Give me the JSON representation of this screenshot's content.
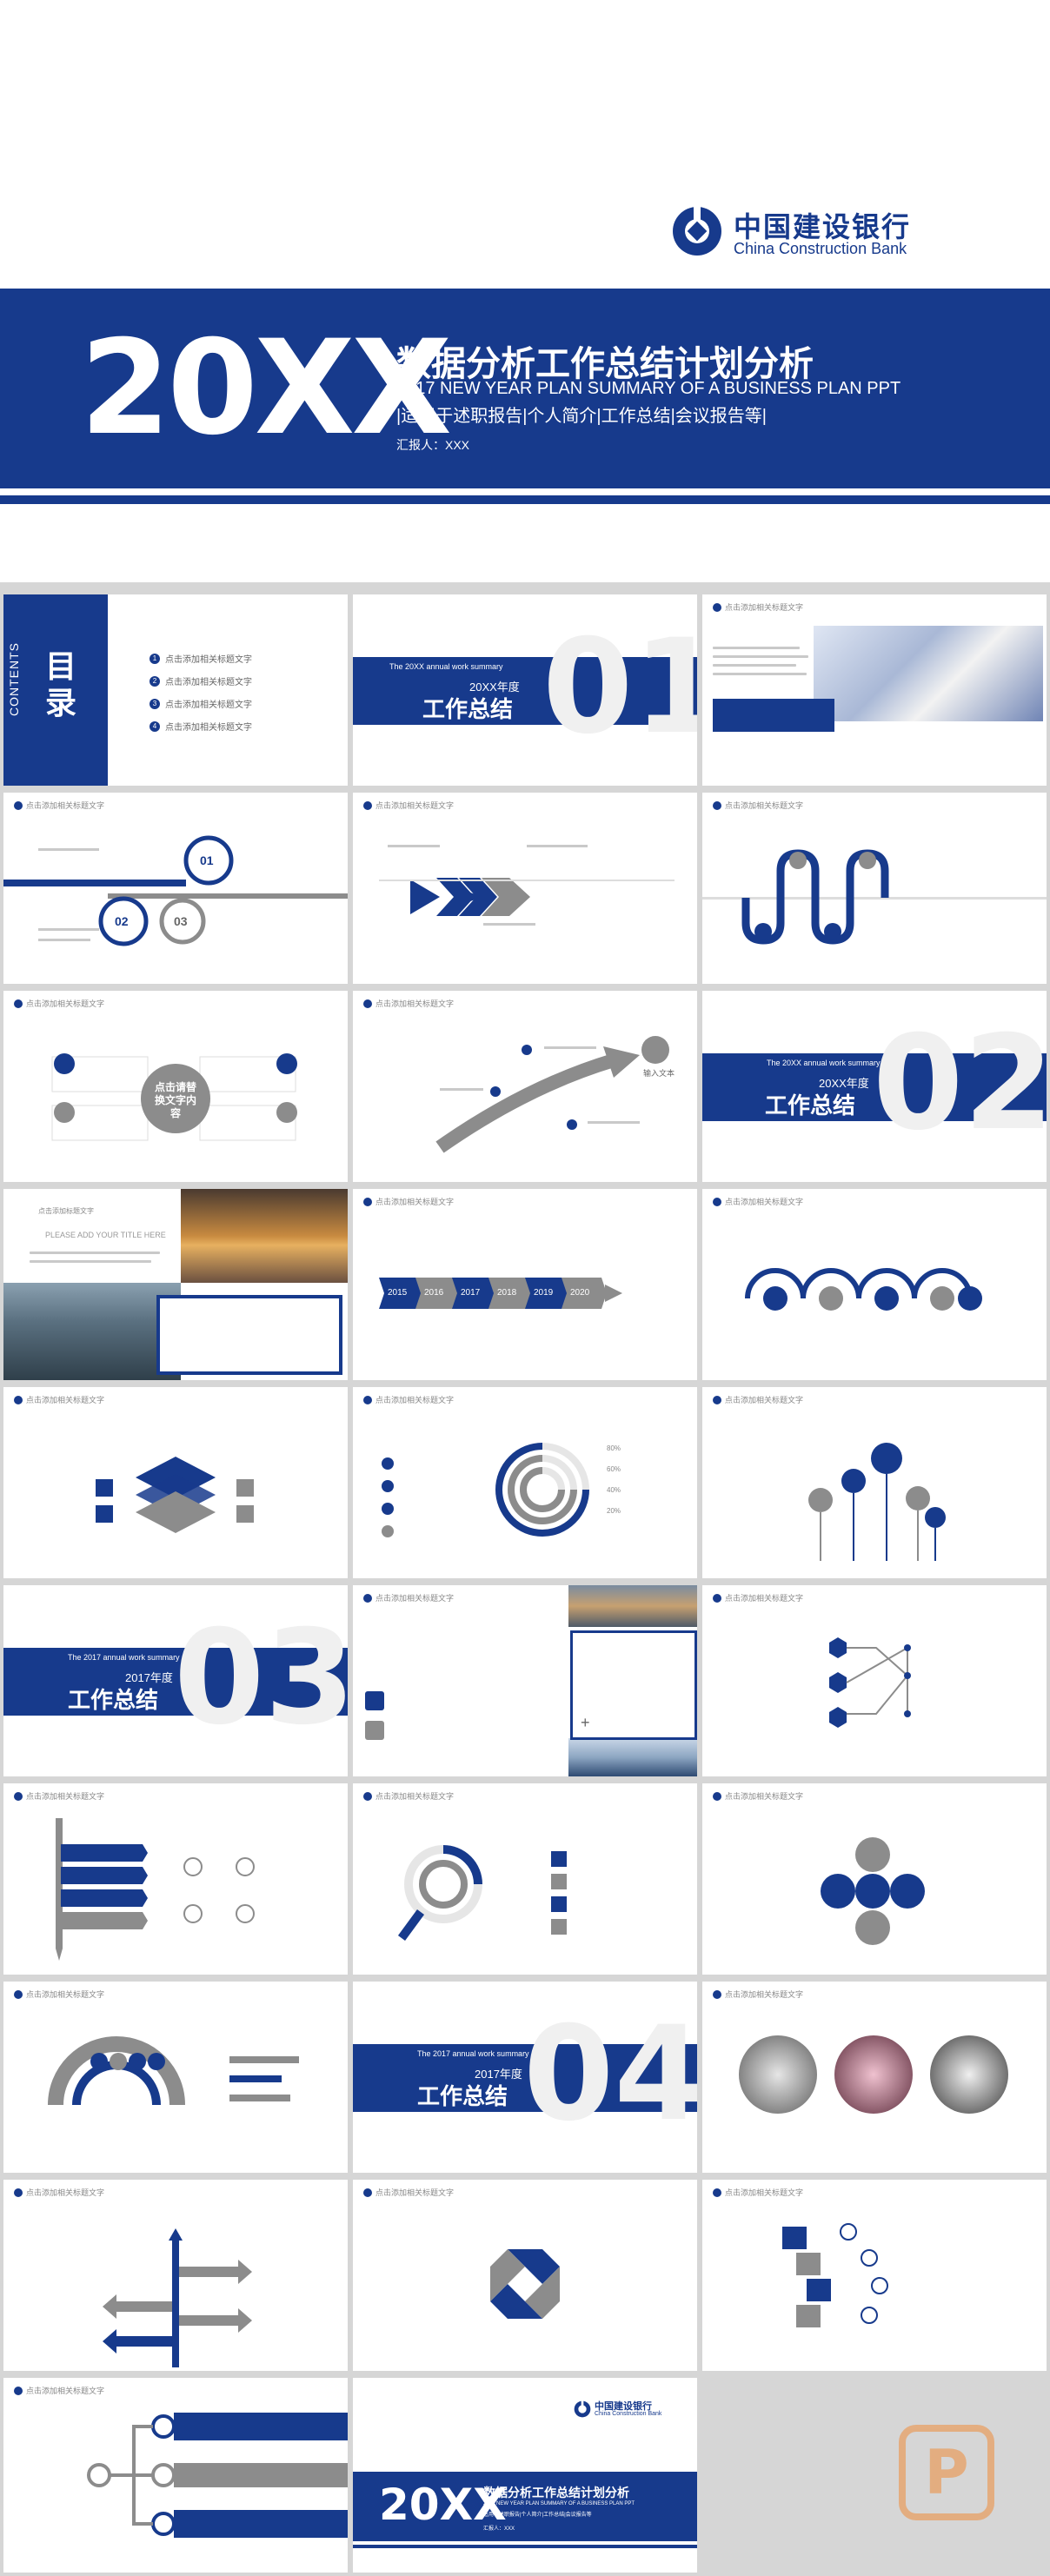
{
  "cover": {
    "logo_cn": "中国建设银行",
    "logo_en": "China Construction Bank",
    "year": "20XX",
    "title": "数据分析工作总结计划分析",
    "subtitle_en": "2017 NEW YEAR PLAN SUMMARY OF A BUSINESS PLAN PPT",
    "tags": "|适用于述职报告|个人简介|工作总结|会议报告等|",
    "reporter": "汇报人：XXX"
  },
  "toc": {
    "title": "目录",
    "title_en": "CONTENTS",
    "items": [
      {
        "num": "1",
        "label": "点击添加相关标题文字"
      },
      {
        "num": "2",
        "label": "点击添加相关标题文字"
      },
      {
        "num": "3",
        "label": "点击添加相关标题文字"
      },
      {
        "num": "4",
        "label": "点击添加相关标题文字"
      }
    ]
  },
  "sections": [
    {
      "num": "01",
      "small": "The 20XX annual work summary",
      "year": "20XX年度",
      "title": "工作总结"
    },
    {
      "num": "02",
      "small": "The 20XX annual work summary",
      "year": "20XX年度",
      "title": "工作总结"
    },
    {
      "num": "03",
      "small": "The 2017 annual work summary",
      "year": "2017年度",
      "title": "工作总结"
    },
    {
      "num": "04",
      "small": "The 2017 annual work summary",
      "year": "2017年度",
      "title": "工作总结"
    }
  ],
  "slide_header": "点击添加相关标题文字",
  "slide_text": {
    "click_title": "点击添加标题文字",
    "title_here": "PLEASE ADD YOUR TITLE HERE",
    "center_text": "点击请替换文字内容",
    "input_text": "输入文本",
    "step_num_1": "01",
    "step_num_2": "02",
    "step_num_3": "03"
  },
  "timeline_years": [
    "2015",
    "2016",
    "2017",
    "2018",
    "2019",
    "2020"
  ],
  "pct_labels": [
    "80%",
    "60%",
    "40%",
    "20%"
  ],
  "closing": {
    "logo_cn": "中国建设银行",
    "logo_en": "China Construction Bank",
    "year": "20XX",
    "title": "数据分析工作总结计划分析",
    "subtitle": "2017 NEW YEAR PLAN SUMMARY OF A BUSINESS PLAN PPT",
    "tags": "适用于述职报告|个人简介|工作总结|会议报告等",
    "reporter": "汇报人：XXX"
  },
  "watermark": "P",
  "colors": {
    "brand": "#173a8c",
    "gray": "#8c8c8c",
    "light": "#e6e6e6",
    "bg": "#d6d6d6",
    "watermark": "#e8a064"
  }
}
